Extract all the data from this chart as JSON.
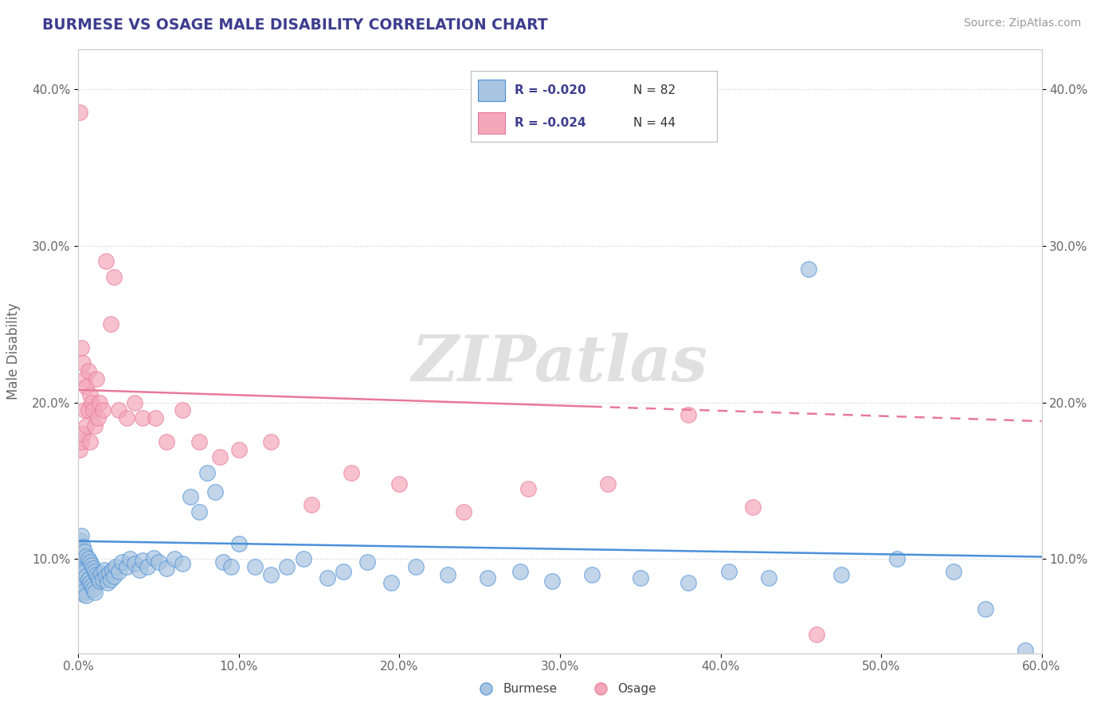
{
  "title": "BURMESE VS OSAGE MALE DISABILITY CORRELATION CHART",
  "source": "Source: ZipAtlas.com",
  "ylabel": "Male Disability",
  "watermark": "ZIPatlas",
  "burmese_R": "R = -0.020",
  "burmese_N": "N = 82",
  "osage_R": "R = -0.024",
  "osage_N": "N = 44",
  "xlim": [
    0.0,
    0.6
  ],
  "ylim": [
    0.04,
    0.425
  ],
  "xticks": [
    0.0,
    0.1,
    0.2,
    0.3,
    0.4,
    0.5,
    0.6
  ],
  "yticks": [
    0.1,
    0.2,
    0.3,
    0.4
  ],
  "ytick_labels": [
    "10.0%",
    "20.0%",
    "30.0%",
    "40.0%"
  ],
  "xtick_labels": [
    "0.0%",
    "10.0%",
    "20.0%",
    "30.0%",
    "40.0%",
    "50.0%",
    "60.0%"
  ],
  "burmese_color": "#a8c4e0",
  "osage_color": "#f4a7b9",
  "burmese_line_color": "#4a90d9",
  "osage_line_color": "#e8799a",
  "background_color": "#ffffff",
  "grid_color": "#cccccc",
  "title_color": "#3d3d8f",
  "axis_label_color": "#666666",
  "burmese_x": [
    0.001,
    0.001,
    0.001,
    0.002,
    0.002,
    0.002,
    0.003,
    0.003,
    0.003,
    0.004,
    0.004,
    0.004,
    0.005,
    0.005,
    0.005,
    0.006,
    0.006,
    0.007,
    0.007,
    0.008,
    0.008,
    0.009,
    0.009,
    0.01,
    0.01,
    0.011,
    0.012,
    0.013,
    0.014,
    0.015,
    0.016,
    0.017,
    0.018,
    0.019,
    0.02,
    0.021,
    0.022,
    0.023,
    0.025,
    0.027,
    0.03,
    0.032,
    0.035,
    0.038,
    0.04,
    0.043,
    0.047,
    0.05,
    0.055,
    0.06,
    0.065,
    0.07,
    0.075,
    0.08,
    0.085,
    0.09,
    0.095,
    0.1,
    0.11,
    0.12,
    0.13,
    0.14,
    0.155,
    0.165,
    0.18,
    0.195,
    0.21,
    0.23,
    0.255,
    0.275,
    0.295,
    0.32,
    0.35,
    0.38,
    0.405,
    0.43,
    0.455,
    0.475,
    0.51,
    0.545,
    0.565,
    0.59
  ],
  "burmese_y": [
    0.112,
    0.098,
    0.088,
    0.115,
    0.096,
    0.082,
    0.108,
    0.093,
    0.078,
    0.105,
    0.092,
    0.08,
    0.102,
    0.089,
    0.077,
    0.1,
    0.087,
    0.098,
    0.085,
    0.096,
    0.083,
    0.094,
    0.081,
    0.092,
    0.079,
    0.09,
    0.088,
    0.086,
    0.091,
    0.087,
    0.093,
    0.089,
    0.085,
    0.091,
    0.087,
    0.093,
    0.089,
    0.095,
    0.092,
    0.098,
    0.095,
    0.1,
    0.097,
    0.093,
    0.099,
    0.095,
    0.101,
    0.098,
    0.094,
    0.1,
    0.097,
    0.14,
    0.13,
    0.155,
    0.143,
    0.098,
    0.095,
    0.11,
    0.095,
    0.09,
    0.095,
    0.1,
    0.088,
    0.092,
    0.098,
    0.085,
    0.095,
    0.09,
    0.088,
    0.092,
    0.086,
    0.09,
    0.088,
    0.085,
    0.092,
    0.088,
    0.285,
    0.09,
    0.1,
    0.092,
    0.068,
    0.042
  ],
  "osage_x": [
    0.001,
    0.001,
    0.002,
    0.002,
    0.003,
    0.003,
    0.004,
    0.004,
    0.005,
    0.005,
    0.006,
    0.006,
    0.007,
    0.007,
    0.008,
    0.009,
    0.01,
    0.011,
    0.012,
    0.013,
    0.015,
    0.017,
    0.02,
    0.022,
    0.025,
    0.03,
    0.035,
    0.04,
    0.048,
    0.055,
    0.065,
    0.075,
    0.088,
    0.1,
    0.12,
    0.145,
    0.17,
    0.2,
    0.24,
    0.28,
    0.33,
    0.38,
    0.42,
    0.46
  ],
  "osage_y": [
    0.385,
    0.17,
    0.235,
    0.175,
    0.225,
    0.18,
    0.215,
    0.195,
    0.21,
    0.185,
    0.22,
    0.195,
    0.205,
    0.175,
    0.2,
    0.195,
    0.185,
    0.215,
    0.19,
    0.2,
    0.195,
    0.29,
    0.25,
    0.28,
    0.195,
    0.19,
    0.2,
    0.19,
    0.19,
    0.175,
    0.195,
    0.175,
    0.165,
    0.17,
    0.175,
    0.135,
    0.155,
    0.148,
    0.13,
    0.145,
    0.148,
    0.192,
    0.133,
    0.052
  ],
  "burmese_trend_start": 0.1115,
  "burmese_trend_end": 0.1015,
  "osage_trend_start": 0.208,
  "osage_trend_end": 0.188
}
